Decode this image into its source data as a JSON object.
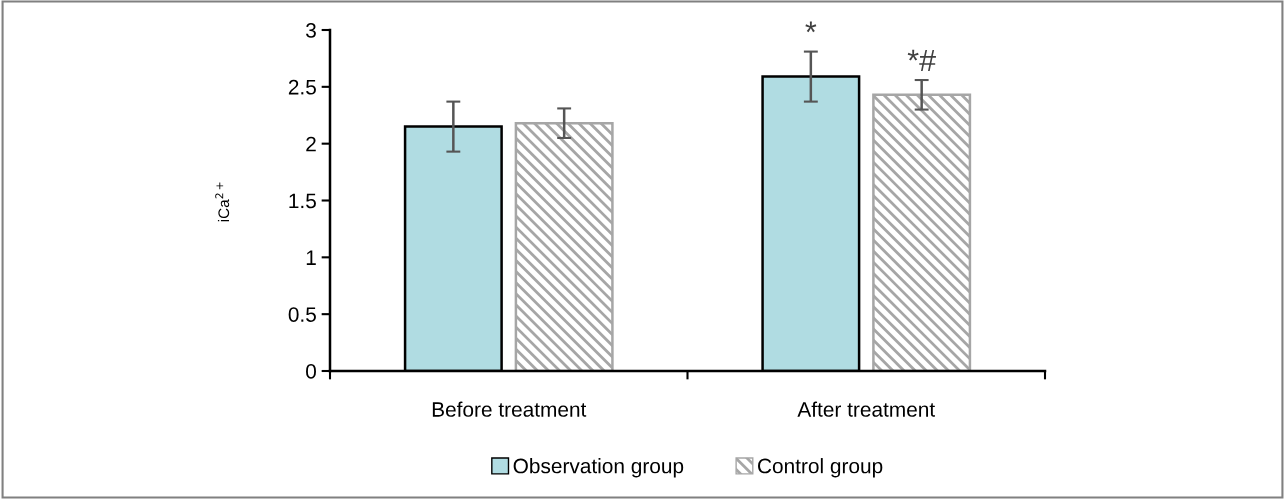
{
  "chart_data": {
    "type": "bar",
    "ylabel": "iCa$^{2+}$",
    "categories": [
      "Before treatment",
      "After treatment"
    ],
    "series": [
      {
        "name": "Observation group",
        "color": "#b0dce2",
        "values": [
          2.15,
          2.59
        ],
        "errors": [
          0.22,
          0.22
        ],
        "value_labels": [
          null,
          "*"
        ]
      },
      {
        "name": "Control group",
        "color": "#a6a6a6",
        "values": [
          2.18,
          2.43
        ],
        "errors": [
          0.13,
          0.13
        ],
        "value_labels": [
          null,
          "*#"
        ]
      }
    ],
    "ylim": [
      0,
      3
    ],
    "yticks": [
      0,
      0.5,
      1,
      1.5,
      2,
      2.5,
      3
    ],
    "grid": false,
    "legend": "bottom"
  }
}
